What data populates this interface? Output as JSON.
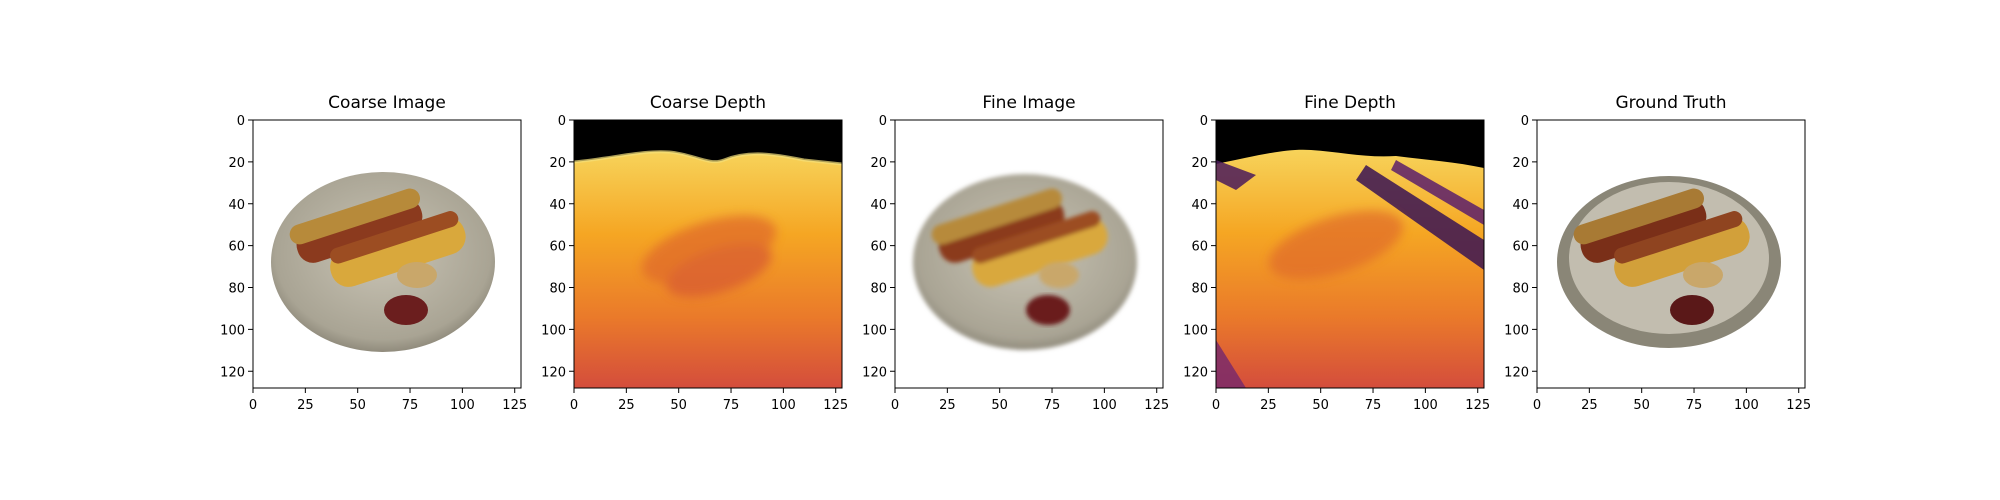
{
  "figure": {
    "panels": [
      {
        "title": "Coarse Image",
        "kind": "image"
      },
      {
        "title": "Coarse Depth",
        "kind": "depth"
      },
      {
        "title": "Fine Image",
        "kind": "image"
      },
      {
        "title": "Fine Depth",
        "kind": "depth"
      },
      {
        "title": "Ground Truth",
        "kind": "image"
      }
    ],
    "x_ticks": [
      "0",
      "25",
      "50",
      "75",
      "100",
      "125"
    ],
    "y_ticks": [
      "0",
      "20",
      "40",
      "60",
      "80",
      "100",
      "120"
    ],
    "axis_range": [
      0,
      128
    ],
    "colors": {
      "plate": "#b8b3a3",
      "plate_rim": "#8e897a",
      "bun": "#d9a83c",
      "sausage": "#8b3a1e",
      "ketchup": "#6b1e1e",
      "mustard": "#c9a76a",
      "depth_bg": "#000000",
      "depth_near": "#f0c030",
      "depth_mid": "#f39a1f",
      "depth_far": "#d8583a"
    }
  }
}
